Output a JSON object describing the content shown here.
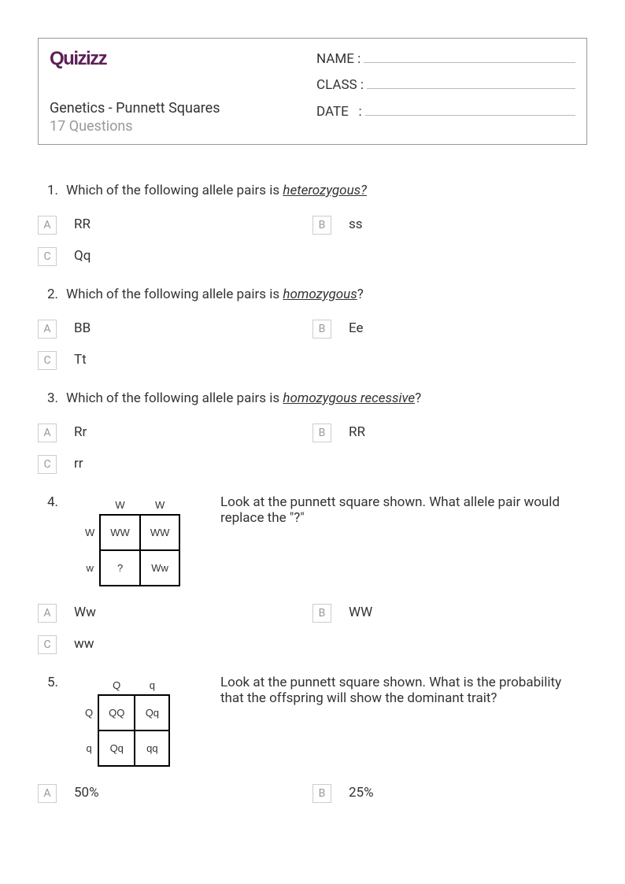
{
  "logo_text": "Quizizz",
  "title": "Genetics - Punnett Squares",
  "subtitle": "17 Questions",
  "fields": {
    "name_label": "NAME :",
    "class_label": "CLASS :",
    "date_label": "DATE   :"
  },
  "questions": [
    {
      "num": "1.",
      "text_pre": "Which of the following allele pairs is ",
      "text_em": "heterozygous?",
      "text_post": "",
      "choices": [
        {
          "letter": "A",
          "text": "RR"
        },
        {
          "letter": "B",
          "text": "ss"
        },
        {
          "letter": "C",
          "text": "Qq"
        }
      ]
    },
    {
      "num": "2.",
      "text_pre": "Which of the following allele pairs is ",
      "text_em": "homozygous",
      "text_post": "?",
      "choices": [
        {
          "letter": "A",
          "text": "BB"
        },
        {
          "letter": "B",
          "text": "Ee"
        },
        {
          "letter": "C",
          "text": "Tt"
        }
      ]
    },
    {
      "num": "3.",
      "text_pre": "Which of the following allele pairs is ",
      "text_em": "homozygous recessive",
      "text_post": "?",
      "choices": [
        {
          "letter": "A",
          "text": "Rr"
        },
        {
          "letter": "B",
          "text": "RR"
        },
        {
          "letter": "C",
          "text": "rr"
        }
      ]
    },
    {
      "num": "4.",
      "side_text": "Look at the punnett square shown. What allele pair would replace the \"?\"",
      "punnett": {
        "col_headers": [
          "W",
          "W"
        ],
        "row_headers": [
          "W",
          "w"
        ],
        "cells": [
          [
            "WW",
            "WW"
          ],
          [
            "?",
            "Ww"
          ]
        ]
      },
      "choices": [
        {
          "letter": "A",
          "text": "Ww"
        },
        {
          "letter": "B",
          "text": "WW"
        },
        {
          "letter": "C",
          "text": "ww"
        }
      ]
    },
    {
      "num": "5.",
      "side_text": "Look at the punnett square shown. What is the probability that the offspring will show the dominant trait?",
      "punnett": {
        "col_headers": [
          "Q",
          "q"
        ],
        "row_headers": [
          "Q",
          "q"
        ],
        "cells": [
          [
            "QQ",
            "Qq"
          ],
          [
            "Qq",
            "qq"
          ]
        ]
      },
      "choices": [
        {
          "letter": "A",
          "text": "50%"
        },
        {
          "letter": "B",
          "text": "25%"
        }
      ]
    }
  ]
}
